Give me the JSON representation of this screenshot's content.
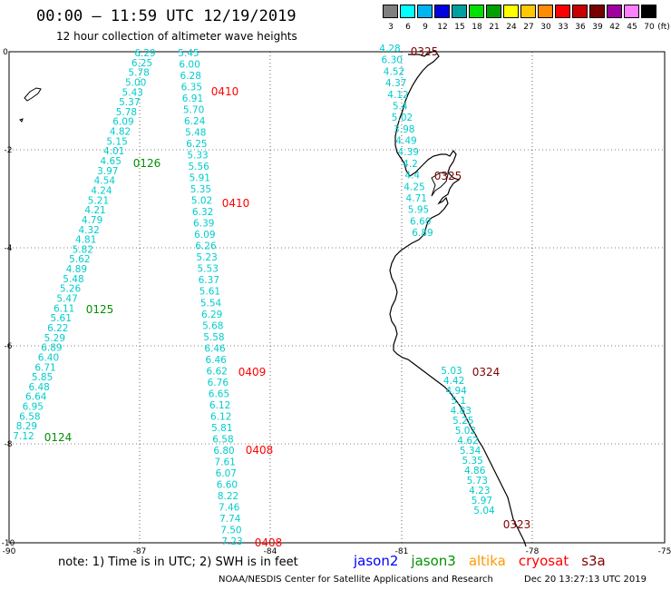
{
  "title": "00:00 – 11:59 UTC 12/19/2019",
  "subtitle": "12 hour collection of altimeter wave heights",
  "legend": {
    "values": [
      "3",
      "6",
      "9",
      "12",
      "15",
      "18",
      "21",
      "24",
      "27",
      "30",
      "33",
      "36",
      "39",
      "42",
      "45",
      "70"
    ],
    "unit": "(ft)",
    "colors": [
      "#7f7f7f",
      "#00ffff",
      "#00b4f0",
      "#0000e0",
      "#00a0a0",
      "#00e000",
      "#00a000",
      "#ffff00",
      "#ffc800",
      "#ff8c00",
      "#ff0000",
      "#c80000",
      "#780000",
      "#a000a0",
      "#ff80ff",
      "#000000"
    ]
  },
  "axes": {
    "x_ticks": [
      "-90",
      "-87",
      "-84",
      "-81",
      "-78",
      "-75"
    ],
    "y_ticks": [
      "0",
      "-2",
      "-4",
      "-6",
      "-8",
      "-10"
    ]
  },
  "tracks": [
    {
      "satellite": "jason3",
      "color": "#00cccc",
      "labels": [
        "6.29",
        "6.25",
        "5.78",
        "5.00",
        "5.43",
        "5.37",
        "5.78",
        "6.09",
        "4.82",
        "5.15",
        "4.01",
        "4.65",
        "3.97",
        "4.54",
        "4.24",
        "5.21",
        "4.21",
        "4.79",
        "4.32",
        "4.81",
        "5.82",
        "5.62",
        "4.89",
        "5.48",
        "5.26",
        "5.47",
        "6.11",
        "5.61",
        "6.22",
        "5.29",
        "6.89",
        "6.40",
        "6.71",
        "5.85",
        "6.48",
        "6.64",
        "6.95",
        "6.58",
        "8.29",
        "7.12"
      ]
    },
    {
      "satellite": "cryosat",
      "color": "#00cccc",
      "labels": [
        "5.45",
        "6.00",
        "6.28",
        "6.35",
        "6.91",
        "5.70",
        "6.24",
        "5.48",
        "6.25",
        "5.33",
        "5.56",
        "5.91",
        "5.35",
        "5.02",
        "6.32",
        "6.39",
        "6.09",
        "6.26",
        "5.23",
        "5.53",
        "6.37",
        "5.61",
        "5.54",
        "6.29",
        "5.68",
        "5.58",
        "6.46",
        "6.46",
        "6.62",
        "6.76",
        "6.65",
        "6.12",
        "6.12",
        "5.81",
        "6.58",
        "6.80",
        "7.61",
        "6.07",
        "6.60",
        "8.22",
        "7.46",
        "7.74",
        "7.50",
        "7.23"
      ]
    },
    {
      "satellite": "s3a-north",
      "color": "#00cccc",
      "labels": [
        "4.28",
        "6.30",
        "4.52",
        "4.37",
        "4.12",
        "5.4",
        "5.02",
        "3.98",
        "4.49",
        "4.39",
        "4.2",
        "4.4",
        "4.25",
        "4.71",
        "5.95",
        "6.60",
        "6.89"
      ]
    },
    {
      "satellite": "s3a-south",
      "color": "#00cccc",
      "labels": [
        "5.03",
        "4.42",
        "4.94",
        "5.1",
        "4.83",
        "5.25",
        "5.02",
        "4.62",
        "5.34",
        "5.35",
        "4.86",
        "5.73",
        "4.23",
        "5.97",
        "5.04"
      ]
    }
  ],
  "time_labels": [
    {
      "text": "0126",
      "color": "#009000"
    },
    {
      "text": "0125",
      "color": "#009000"
    },
    {
      "text": "0124",
      "color": "#009000"
    },
    {
      "text": "0410",
      "color": "#ff0000"
    },
    {
      "text": "0410",
      "color": "#ff0000"
    },
    {
      "text": "0409",
      "color": "#ff0000"
    },
    {
      "text": "0408",
      "color": "#ff0000"
    },
    {
      "text": "0408",
      "color": "#ff0000"
    },
    {
      "text": "0325",
      "color": "#800000"
    },
    {
      "text": "0325",
      "color": "#800000"
    },
    {
      "text": "0324",
      "color": "#800000"
    },
    {
      "text": "0323",
      "color": "#800000"
    }
  ],
  "note": "note: 1) Time is in UTC; 2) SWH is in feet",
  "satellites": [
    {
      "name": "jason2",
      "color": "#0000ff"
    },
    {
      "name": "jason3",
      "color": "#009000"
    },
    {
      "name": "altika",
      "color": "#ff9900"
    },
    {
      "name": "cryosat",
      "color": "#ff0000"
    },
    {
      "name": "s3a",
      "color": "#800000"
    }
  ],
  "credit": "NOAA/NESDIS Center for Satellite Applications and Research",
  "stamp": "Dec 20 13:27:13 UTC 2019"
}
